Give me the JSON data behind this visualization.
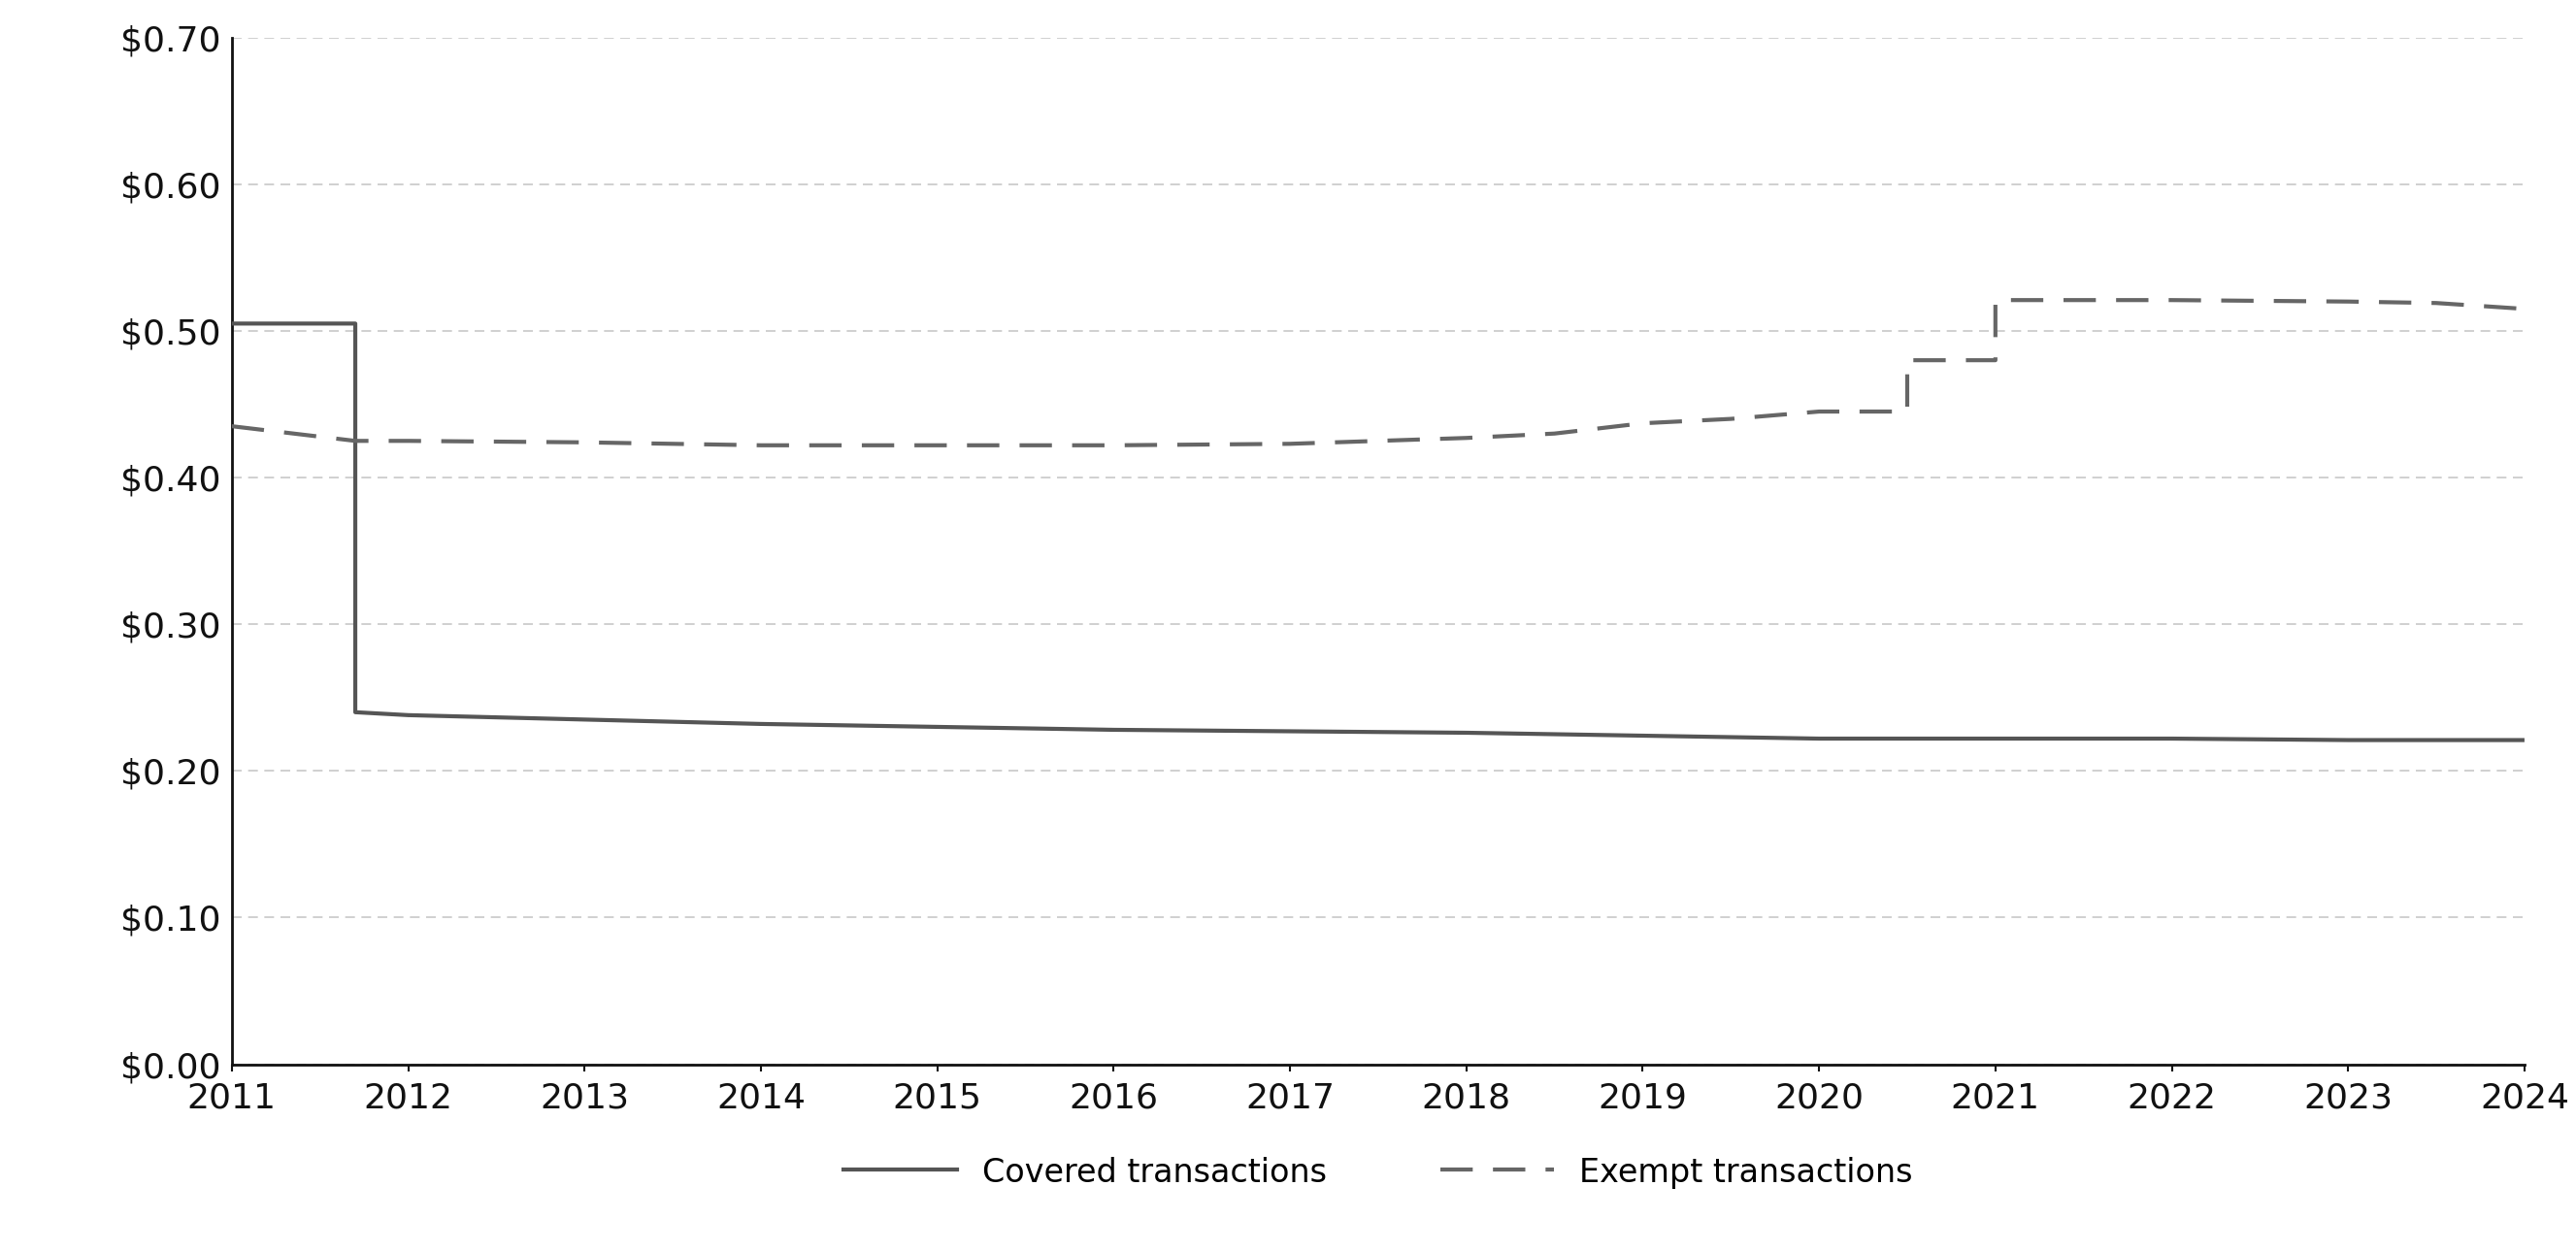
{
  "title": "",
  "background_color": "#ffffff",
  "covered_x": [
    2011,
    2011.7,
    2011.7,
    2012,
    2013,
    2014,
    2015,
    2016,
    2017,
    2018,
    2018.5,
    2019,
    2019.5,
    2020,
    2020.5,
    2021,
    2022,
    2023,
    2024
  ],
  "covered_y": [
    0.505,
    0.505,
    0.24,
    0.238,
    0.235,
    0.232,
    0.23,
    0.228,
    0.227,
    0.226,
    0.225,
    0.224,
    0.223,
    0.222,
    0.222,
    0.222,
    0.222,
    0.221,
    0.221
  ],
  "exempt_x": [
    2011,
    2011.7,
    2012,
    2013,
    2014,
    2015,
    2016,
    2017,
    2018,
    2018.5,
    2019,
    2019.5,
    2020,
    2020.5,
    2020.5,
    2021,
    2021,
    2022,
    2022,
    2023,
    2023.5,
    2024
  ],
  "exempt_y": [
    0.435,
    0.425,
    0.425,
    0.424,
    0.422,
    0.422,
    0.422,
    0.423,
    0.427,
    0.43,
    0.437,
    0.44,
    0.445,
    0.445,
    0.48,
    0.48,
    0.521,
    0.521,
    0.521,
    0.52,
    0.519,
    0.515
  ],
  "xlim": [
    2011,
    2024
  ],
  "ylim": [
    0.0,
    0.7
  ],
  "yticks": [
    0.0,
    0.1,
    0.2,
    0.3,
    0.4,
    0.5,
    0.6,
    0.7
  ],
  "xticks": [
    2011,
    2012,
    2013,
    2014,
    2015,
    2016,
    2017,
    2018,
    2019,
    2020,
    2021,
    2022,
    2023,
    2024
  ],
  "covered_color": "#555555",
  "exempt_color": "#666666",
  "line_width": 3.0,
  "grid_color": "#c8c8c8",
  "legend_covered": "Covered transactions",
  "legend_exempt": "Exempt transactions",
  "tick_fontsize": 26,
  "legend_fontsize": 24
}
